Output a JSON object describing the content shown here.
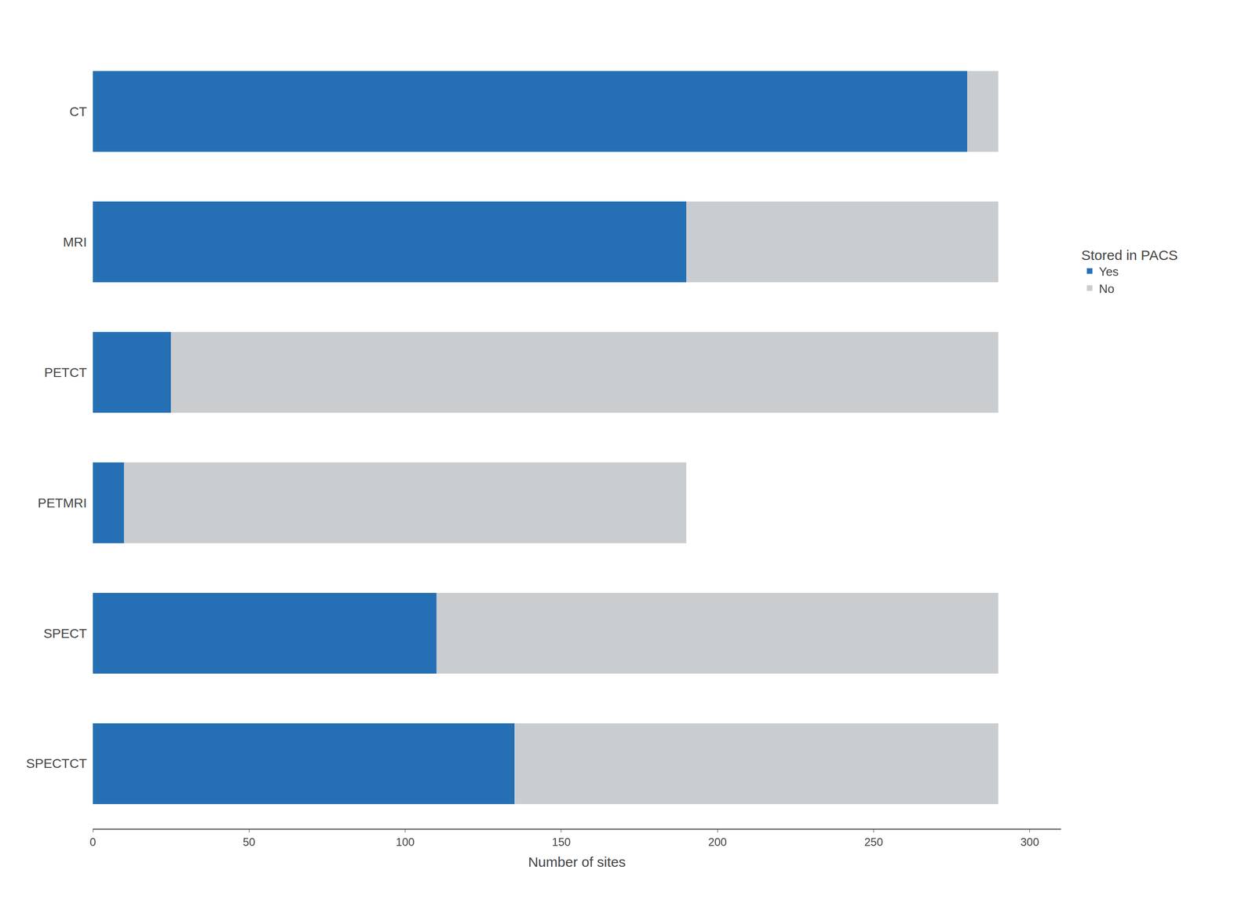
{
  "chart_data": {
    "type": "bar",
    "orientation": "horizontal",
    "stacked": true,
    "categories": [
      "CT",
      "MRI",
      "PETCT",
      "PETMRI",
      "SPECT",
      "SPECTCT"
    ],
    "series": [
      {
        "name": "Yes",
        "color": "#2570B5",
        "values": [
          280,
          190,
          25,
          10,
          110,
          135
        ]
      },
      {
        "name": "No",
        "color": "#CACDD0",
        "values": [
          10,
          100,
          265,
          180,
          180,
          155
        ]
      }
    ],
    "xlabel": "Number of sites",
    "legend_title": "Stored in PACS",
    "legend": "right",
    "xlim": [
      0,
      310
    ],
    "xticks": [
      0,
      50,
      100,
      150,
      200,
      250,
      300
    ],
    "grid": false
  }
}
